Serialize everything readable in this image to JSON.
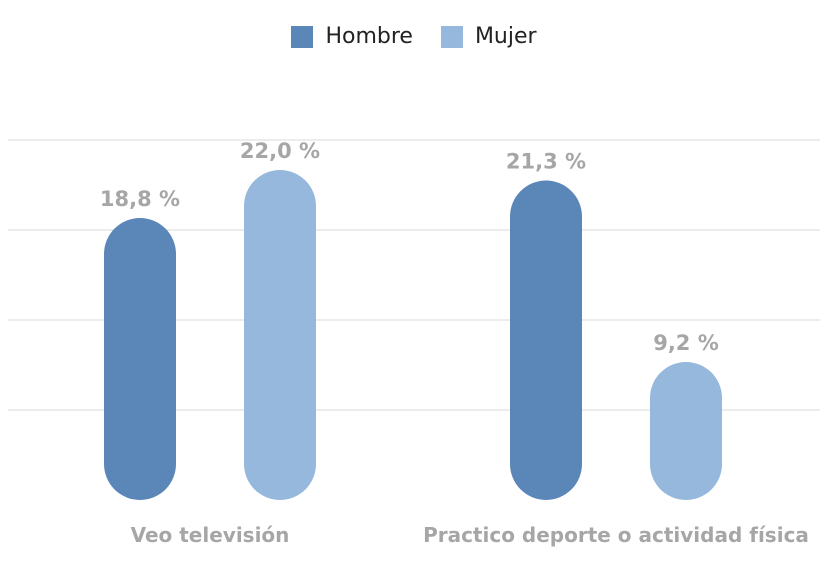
{
  "legend": [
    {
      "name": "Hombre",
      "color": "#5b86b8"
    },
    {
      "name": "Mujer",
      "color": "#95b8dc"
    }
  ],
  "chart_data": {
    "type": "bar",
    "categories": [
      "Veo televisión",
      "Practico deporte o actividad física"
    ],
    "series": [
      {
        "name": "Hombre",
        "values": [
          18.8,
          21.3
        ],
        "labels": [
          "18,8 %",
          "21,3 %"
        ],
        "color": "#5b86b8"
      },
      {
        "name": "Mujer",
        "values": [
          22.0,
          9.2
        ],
        "labels": [
          "22,0 %",
          "9,2 %"
        ],
        "color": "#95b8dc"
      }
    ],
    "title": "",
    "xlabel": "",
    "ylabel": "",
    "ylim": [
      0,
      24
    ],
    "grid": true,
    "legend_position": "top-center",
    "gridline_color": "#d9d9d9"
  }
}
